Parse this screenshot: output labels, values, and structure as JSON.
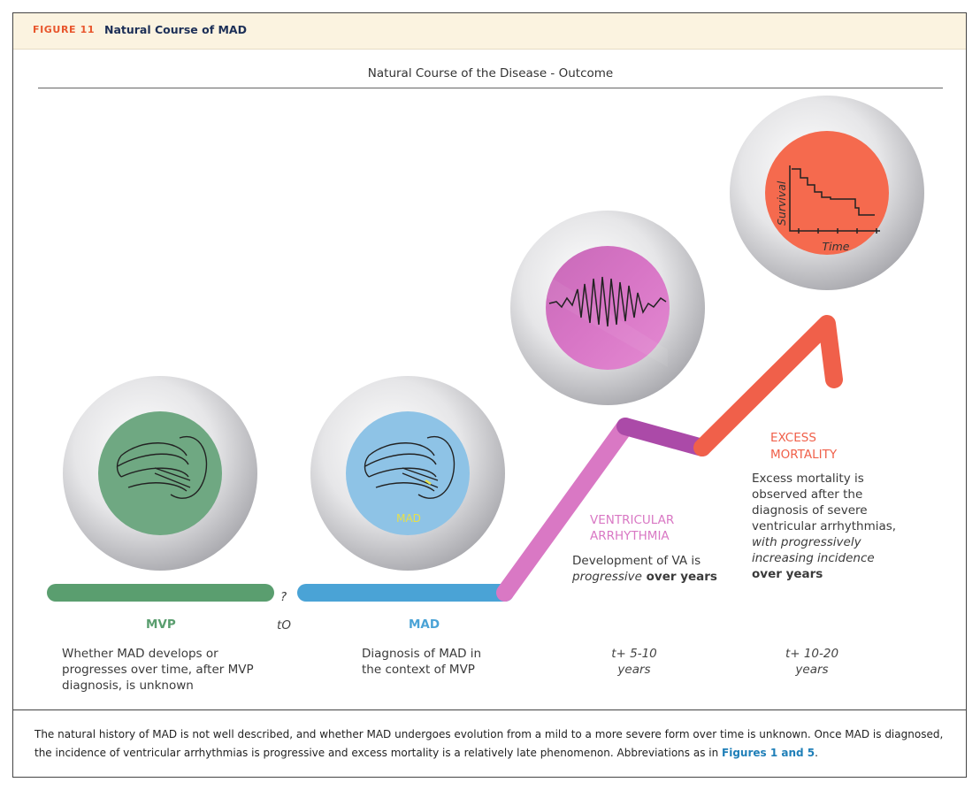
{
  "header": {
    "figure_label": "FIGURE 11",
    "figure_title": "Natural Course of MAD"
  },
  "diagram": {
    "title": "Natural Course of the Disease - Outcome",
    "question_mark": "?",
    "stages": {
      "mvp": {
        "label": "MVP",
        "description": "Whether MAD develops or progresses over time, after MVP diagnosis, is unknown",
        "time": "tO",
        "color": "#5a9e6f"
      },
      "mad": {
        "label": "MAD",
        "icon_label": "MAD",
        "description": "Diagnosis of MAD in the context of MVP",
        "color": "#4aa3d6"
      },
      "va": {
        "label_line1": "VENTRICULAR",
        "label_line2": "ARRHYTHMIA",
        "desc_part1": "Development of VA is",
        "desc_italic": "progressive",
        "desc_bold": " over years",
        "time_line1": "t+ 5-10",
        "time_line2": "years",
        "color": "#d978c4"
      },
      "mortality": {
        "label_line1": "EXCESS",
        "label_line2": "MORTALITY",
        "desc_line1": "Excess mortality is",
        "desc_line2": "observed after the",
        "desc_line3": "diagnosis of severe",
        "desc_line4": "ventricular arrhythmias,",
        "desc_italic1": "with progressively",
        "desc_italic2": "increasing incidence",
        "desc_bold": "over years",
        "time_line1": "t+ 10-20",
        "time_line2": "years",
        "color": "#f0604a"
      }
    },
    "survival_plot": {
      "ylabel": "Survival",
      "xlabel": "Time"
    },
    "icons": [
      "heart-valve-icon",
      "heart-valve-mad-icon",
      "ecg-arrhythmia-icon",
      "survival-curve-icon"
    ]
  },
  "caption": {
    "text": "The natural history of MAD is not well described, and whether MAD undergoes evolution from a mild to a more severe form over time is unknown. Once MAD is diagnosed, the incidence of ventricular arrhythmias is progressive and excess mortality is a relatively late phenomenon. Abbreviations as in ",
    "ref": "Figures 1 and 5",
    "end": "."
  }
}
